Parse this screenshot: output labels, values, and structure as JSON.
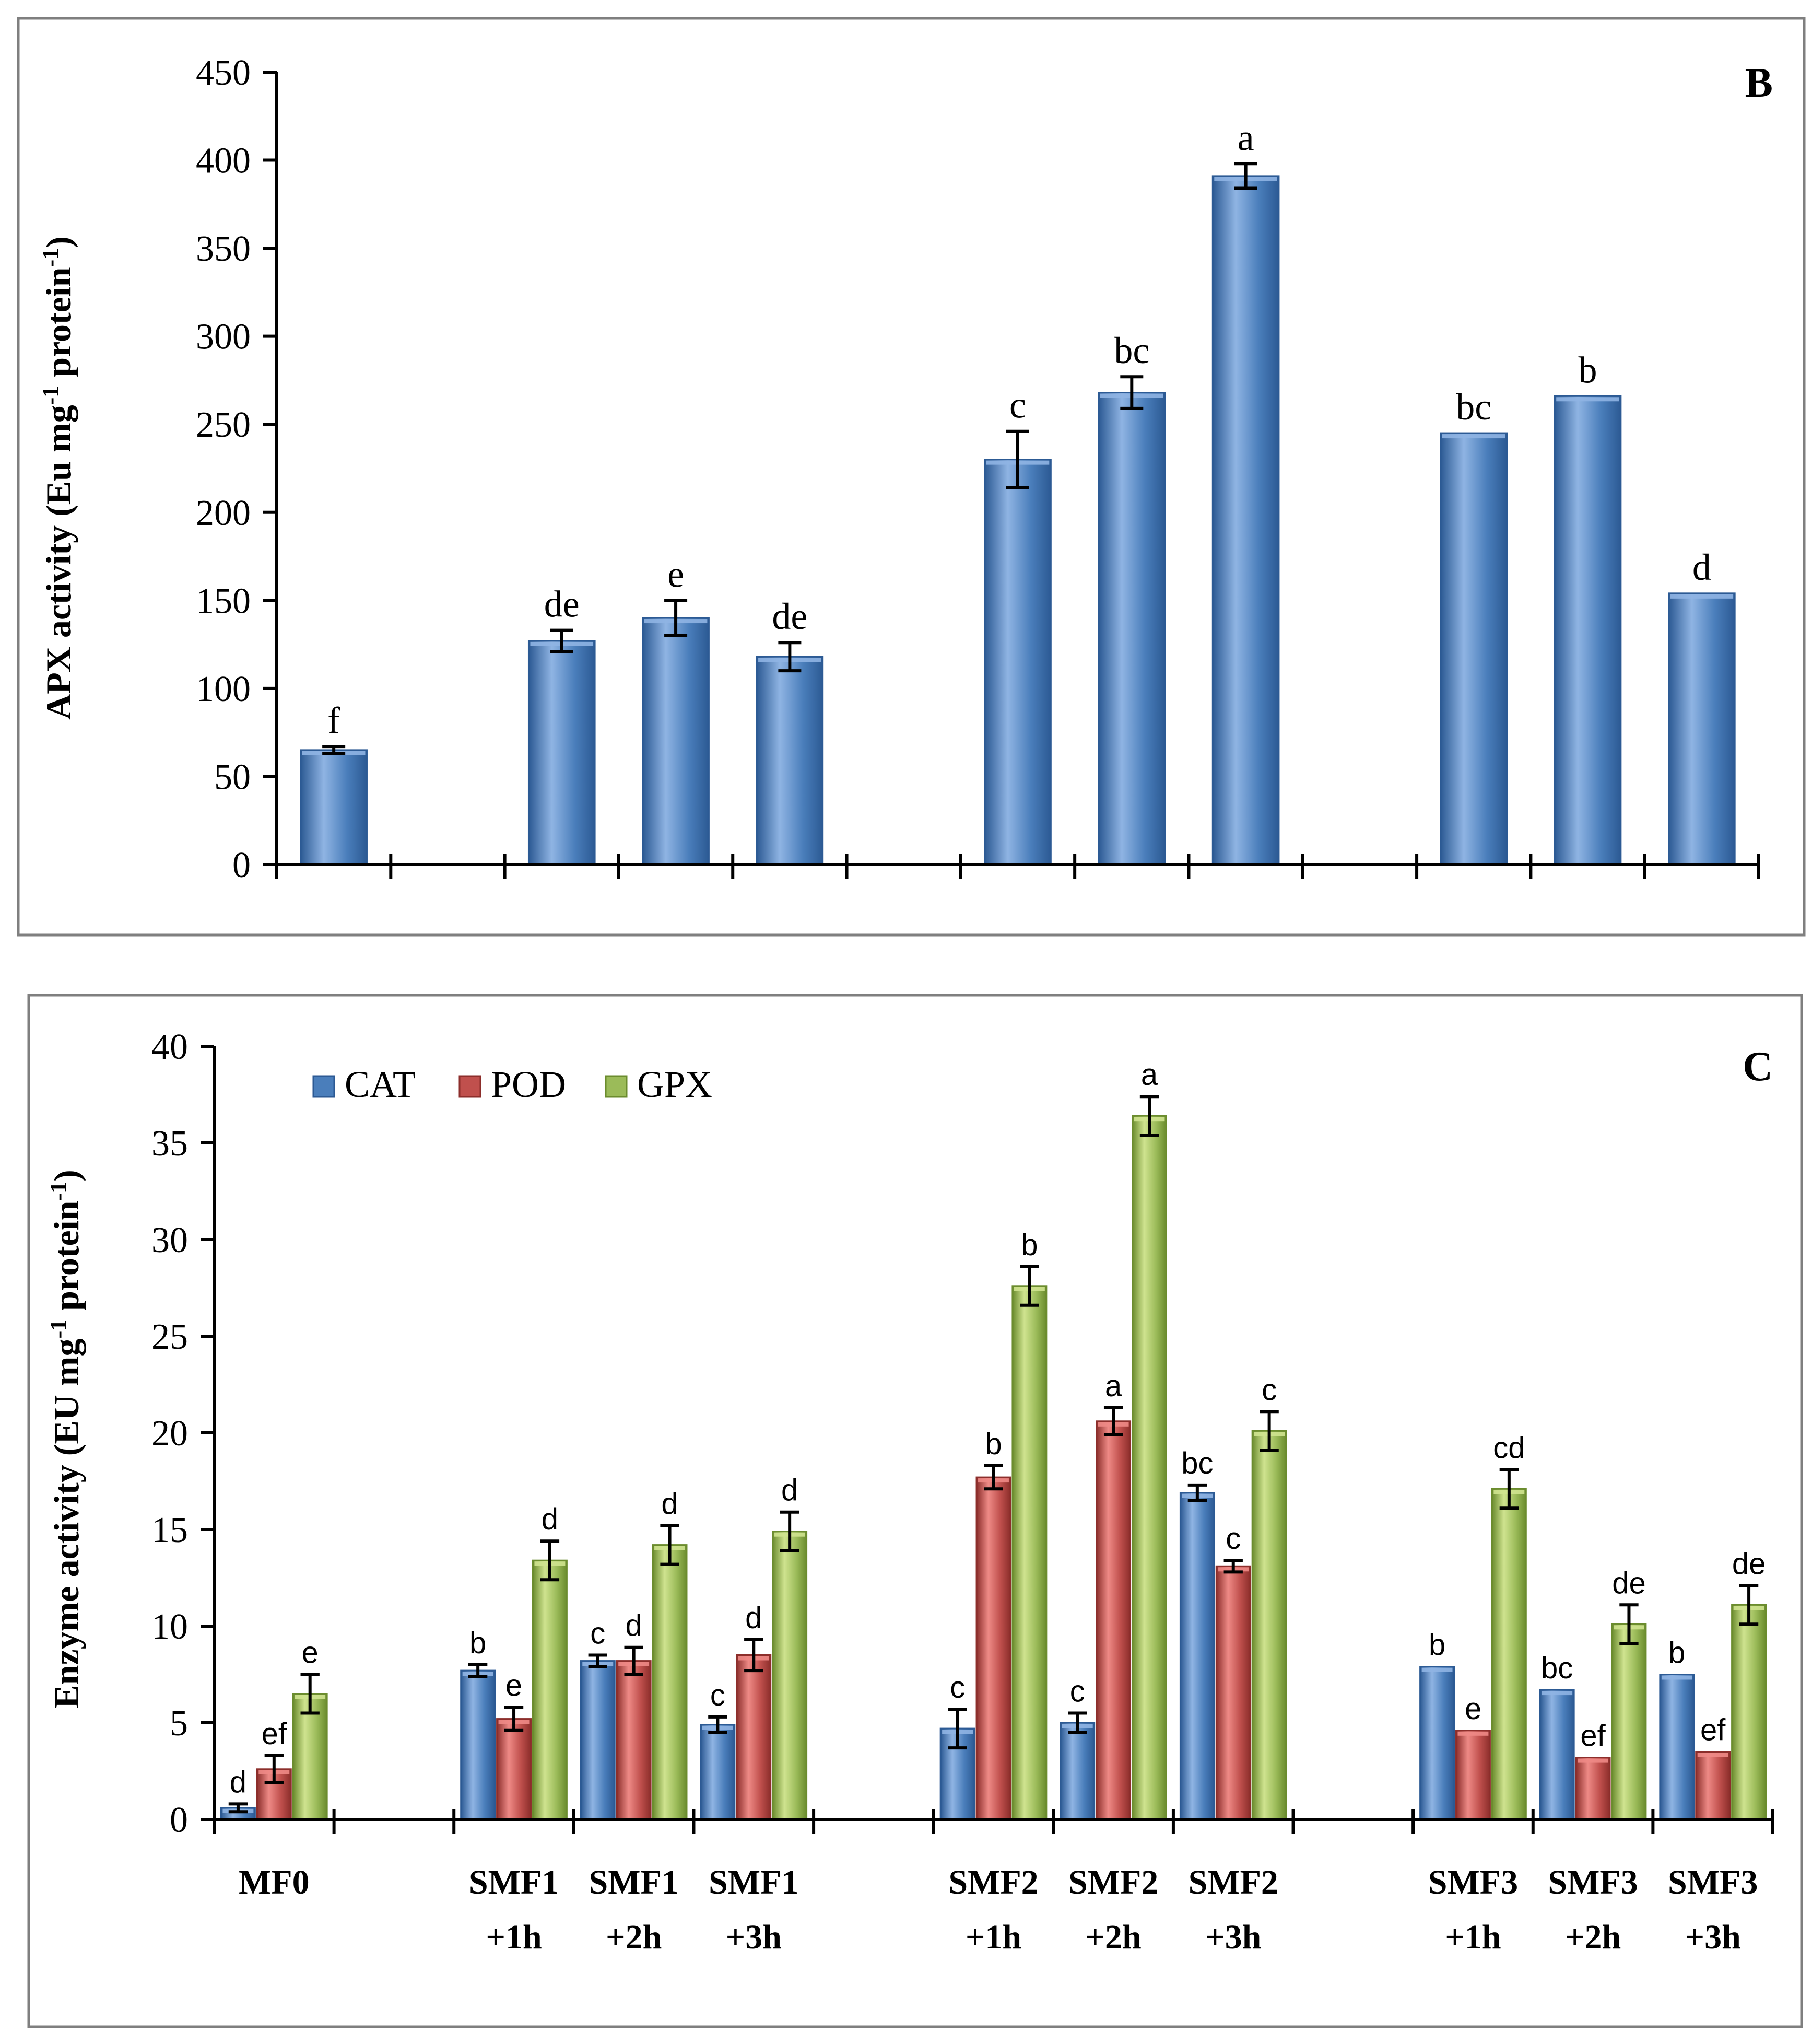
{
  "categories": [
    {
      "line1": "MF0",
      "line2": ""
    },
    {
      "line1": "",
      "line2": ""
    },
    {
      "line1": "SMF1",
      "line2": "+1h"
    },
    {
      "line1": "SMF1",
      "line2": "+2h"
    },
    {
      "line1": "SMF1",
      "line2": "+3h"
    },
    {
      "line1": "",
      "line2": ""
    },
    {
      "line1": "SMF2",
      "line2": "+1h"
    },
    {
      "line1": "SMF2",
      "line2": "+2h"
    },
    {
      "line1": "SMF2",
      "line2": "+3h"
    },
    {
      "line1": "",
      "line2": ""
    },
    {
      "line1": "SMF3",
      "line2": "+1h"
    },
    {
      "line1": "SMF3",
      "line2": "+2h"
    },
    {
      "line1": "SMF3",
      "line2": "+3h"
    }
  ],
  "colors": {
    "CAT": {
      "light": "#8fb4e3",
      "main": "#4a7ebb",
      "dark": "#2c5a94"
    },
    "POD": {
      "light": "#ee8a86",
      "main": "#c0504d",
      "dark": "#8c2e2b"
    },
    "GPX": {
      "light": "#cfe38f",
      "main": "#9bbb59",
      "dark": "#6b8c2e"
    }
  },
  "chart_data": [
    {
      "panel": "B",
      "type": "bar",
      "ylabel": "APX activity (Eu mg-1 protein-1)",
      "ylabel_parts": {
        "a": "APX activity (Eu mg",
        "sup1": "-1",
        "b": " protein",
        "sup2": "-1",
        "c": ")"
      },
      "ylim": [
        0,
        450
      ],
      "yticks": [
        0,
        50,
        100,
        150,
        200,
        250,
        300,
        350,
        400,
        450
      ],
      "series": [
        {
          "name": "APX",
          "values": [
            65,
            null,
            127,
            140,
            118,
            null,
            230,
            268,
            391,
            null,
            245,
            266,
            154
          ],
          "errors": [
            2,
            null,
            6,
            10,
            8,
            null,
            16,
            9,
            7,
            null,
            0,
            0,
            0
          ],
          "letters": [
            "f",
            "",
            "de",
            "e",
            "de",
            "",
            "c",
            "bc",
            "a",
            "",
            "bc",
            "b",
            "d"
          ]
        }
      ]
    },
    {
      "panel": "C",
      "type": "bar",
      "ylabel": "Enzyme activity (EU mg-1 protein-1)",
      "ylabel_parts": {
        "a": "Enzyme activity (EU mg",
        "sup1": "-1",
        "b": " protein",
        "sup2": "-1",
        "c": ")"
      },
      "ylim": [
        0,
        40
      ],
      "yticks": [
        0,
        5,
        10,
        15,
        20,
        25,
        30,
        35,
        40
      ],
      "legend": [
        "CAT",
        "POD",
        "GPX"
      ],
      "series": [
        {
          "name": "CAT",
          "values": [
            0.6,
            null,
            7.7,
            8.2,
            4.9,
            null,
            4.7,
            5.0,
            16.9,
            null,
            7.9,
            6.7,
            7.5
          ],
          "errors": [
            0.2,
            null,
            0.3,
            0.3,
            0.4,
            null,
            1.0,
            0.5,
            0.4,
            null,
            0,
            0,
            0
          ],
          "letters": [
            "d",
            "",
            "b",
            "c",
            "c",
            "",
            "c",
            "c",
            "bc",
            "",
            "b",
            "bc",
            "b"
          ]
        },
        {
          "name": "POD",
          "values": [
            2.6,
            null,
            5.2,
            8.2,
            8.5,
            null,
            17.7,
            20.6,
            13.1,
            null,
            4.6,
            3.2,
            3.5
          ],
          "errors": [
            0.7,
            null,
            0.6,
            0.7,
            0.8,
            null,
            0.6,
            0.7,
            0.3,
            null,
            0,
            0,
            0
          ],
          "letters": [
            "ef",
            "",
            "e",
            "d",
            "d",
            "",
            "b",
            "a",
            "c",
            "",
            "e",
            "ef",
            "ef"
          ]
        },
        {
          "name": "GPX",
          "values": [
            6.5,
            null,
            13.4,
            14.2,
            14.9,
            null,
            27.6,
            36.4,
            20.1,
            null,
            17.1,
            10.1,
            11.1
          ],
          "errors": [
            1.0,
            null,
            1.0,
            1.0,
            1.0,
            null,
            1.0,
            1.0,
            1.0,
            null,
            1.0,
            1.0,
            1.0
          ],
          "letters": [
            "e",
            "",
            "d",
            "d",
            "d",
            "",
            "b",
            "a",
            "c",
            "",
            "cd",
            "de",
            "de"
          ]
        }
      ]
    }
  ]
}
